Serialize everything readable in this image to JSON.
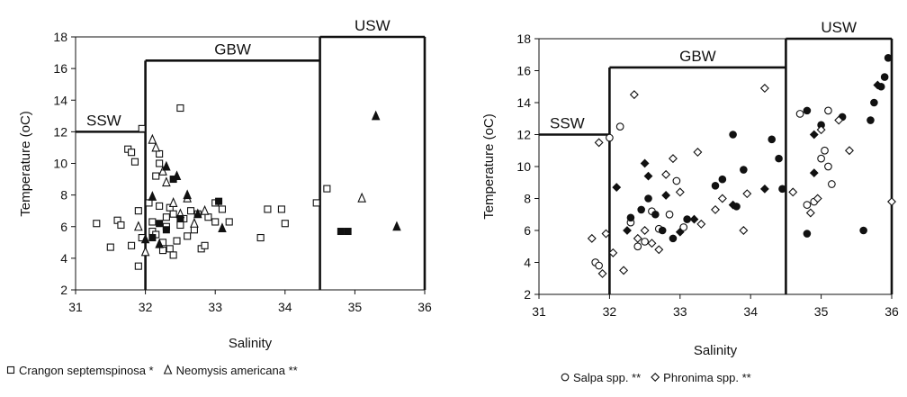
{
  "chart_data": [
    {
      "type": "scatter",
      "title": "",
      "xlabel": "Salinity",
      "ylabel": "Temperature (oC)",
      "xlim": [
        31,
        36
      ],
      "ylim": [
        2,
        18
      ],
      "xticks": [
        "31",
        "32",
        "33",
        "34",
        "35",
        "36"
      ],
      "yticks": [
        "2",
        "4",
        "6",
        "8",
        "10",
        "12",
        "14",
        "16",
        "18"
      ],
      "grid": false,
      "legend_position": "bottom",
      "water_masses": [
        {
          "label": "SSW",
          "salinity_min": 31,
          "salinity_max": 32,
          "temperature_max": 12
        },
        {
          "label": "GBW",
          "salinity_min": 32,
          "salinity_max": 34.5,
          "temperature_max": 16.5
        },
        {
          "label": "USW",
          "salinity_min": 34.5,
          "salinity_max": 36,
          "temperature_max": 18
        }
      ],
      "series": [
        {
          "name": "Crangon septemspinosa *",
          "marker": "open-square",
          "points": [
            [
              31.3,
              6.2
            ],
            [
              31.5,
              4.7
            ],
            [
              31.6,
              6.4
            ],
            [
              31.65,
              6.1
            ],
            [
              31.75,
              10.9
            ],
            [
              31.8,
              10.7
            ],
            [
              31.85,
              10.1
            ],
            [
              31.9,
              3.5
            ],
            [
              31.95,
              5.3
            ],
            [
              31.9,
              7.0
            ],
            [
              31.95,
              12.2
            ],
            [
              31.8,
              4.8
            ],
            [
              32.05,
              7.5
            ],
            [
              32.1,
              6.3
            ],
            [
              32.1,
              5.7
            ],
            [
              32.15,
              5.5
            ],
            [
              32.15,
              9.2
            ],
            [
              32.2,
              10.6
            ],
            [
              32.2,
              10.0
            ],
            [
              32.2,
              7.3
            ],
            [
              32.25,
              5.0
            ],
            [
              32.25,
              4.5
            ],
            [
              32.3,
              6.6
            ],
            [
              32.3,
              6.0
            ],
            [
              32.35,
              4.6
            ],
            [
              32.35,
              7.2
            ],
            [
              32.4,
              6.8
            ],
            [
              32.4,
              4.2
            ],
            [
              32.45,
              5.1
            ],
            [
              32.5,
              6.1
            ],
            [
              32.5,
              13.5
            ],
            [
              32.55,
              6.5
            ],
            [
              32.6,
              5.4
            ],
            [
              32.65,
              7.0
            ],
            [
              32.7,
              5.8
            ],
            [
              32.75,
              6.8
            ],
            [
              32.8,
              4.6
            ],
            [
              32.85,
              4.8
            ],
            [
              32.9,
              6.6
            ],
            [
              33.0,
              7.5
            ],
            [
              33.0,
              6.3
            ],
            [
              33.1,
              7.1
            ],
            [
              33.2,
              6.3
            ],
            [
              33.65,
              5.3
            ],
            [
              33.75,
              7.1
            ],
            [
              33.95,
              7.1
            ],
            [
              34.0,
              6.2
            ],
            [
              34.45,
              7.5
            ],
            [
              34.6,
              8.4
            ]
          ]
        },
        {
          "name": "Neomysis americana **",
          "marker": "open-triangle",
          "points": [
            [
              31.9,
              6.0
            ],
            [
              32.0,
              4.4
            ],
            [
              32.1,
              11.5
            ],
            [
              32.15,
              11.0
            ],
            [
              32.25,
              9.5
            ],
            [
              32.3,
              8.8
            ],
            [
              32.4,
              7.5
            ],
            [
              32.5,
              6.8
            ],
            [
              32.6,
              7.8
            ],
            [
              32.7,
              6.2
            ],
            [
              32.85,
              7.0
            ],
            [
              35.1,
              7.8
            ]
          ]
        },
        {
          "name": "",
          "marker": "filled-square",
          "points": [
            [
              32.1,
              5.3
            ],
            [
              32.2,
              6.2
            ],
            [
              32.3,
              5.8
            ],
            [
              32.4,
              9.0
            ],
            [
              32.5,
              6.5
            ],
            [
              33.05,
              7.6
            ],
            [
              34.8,
              5.7
            ],
            [
              34.9,
              5.7
            ]
          ]
        },
        {
          "name": "",
          "marker": "filled-triangle",
          "points": [
            [
              32.0,
              5.2
            ],
            [
              32.1,
              7.9
            ],
            [
              32.2,
              4.9
            ],
            [
              32.3,
              9.8
            ],
            [
              32.45,
              9.2
            ],
            [
              32.6,
              8.0
            ],
            [
              32.75,
              6.8
            ],
            [
              33.1,
              5.9
            ],
            [
              35.3,
              13.0
            ],
            [
              35.6,
              6.0
            ]
          ]
        }
      ],
      "legend": [
        {
          "marker": "open-square",
          "label": "Crangon septemspinosa *"
        },
        {
          "marker": "open-triangle",
          "label": "Neomysis americana **"
        }
      ]
    },
    {
      "type": "scatter",
      "title": "",
      "xlabel": "Salinity",
      "ylabel": "Temperature (oC)",
      "xlim": [
        31,
        36
      ],
      "ylim": [
        2,
        18
      ],
      "xticks": [
        "31",
        "32",
        "33",
        "34",
        "35",
        "36"
      ],
      "yticks": [
        "2",
        "4",
        "6",
        "8",
        "10",
        "12",
        "14",
        "16",
        "18"
      ],
      "grid": false,
      "legend_position": "bottom",
      "water_masses": [
        {
          "label": "SSW",
          "salinity_min": 31,
          "salinity_max": 32,
          "temperature_max": 12
        },
        {
          "label": "GBW",
          "salinity_min": 32,
          "salinity_max": 34.5,
          "temperature_max": 16.2
        },
        {
          "label": "USW",
          "salinity_min": 34.5,
          "salinity_max": 36,
          "temperature_max": 18
        }
      ],
      "series": [
        {
          "name": "Salpa spp. **",
          "marker": "open-circle",
          "points": [
            [
              31.8,
              4.0
            ],
            [
              31.85,
              3.8
            ],
            [
              32.0,
              11.8
            ],
            [
              32.15,
              12.5
            ],
            [
              32.3,
              6.5
            ],
            [
              32.4,
              5.0
            ],
            [
              32.5,
              5.3
            ],
            [
              32.6,
              7.2
            ],
            [
              32.7,
              6.1
            ],
            [
              32.85,
              7.0
            ],
            [
              32.95,
              9.1
            ],
            [
              33.05,
              6.2
            ],
            [
              34.7,
              13.3
            ],
            [
              34.8,
              7.6
            ],
            [
              34.9,
              7.8
            ],
            [
              35.0,
              10.5
            ],
            [
              35.05,
              11.0
            ],
            [
              35.1,
              13.5
            ],
            [
              35.1,
              10.0
            ],
            [
              35.15,
              8.9
            ]
          ]
        },
        {
          "name": "",
          "marker": "filled-circle",
          "points": [
            [
              32.3,
              6.8
            ],
            [
              32.45,
              7.3
            ],
            [
              32.55,
              8.0
            ],
            [
              32.65,
              7.0
            ],
            [
              32.75,
              6.0
            ],
            [
              32.9,
              5.5
            ],
            [
              33.1,
              6.7
            ],
            [
              33.5,
              8.8
            ],
            [
              33.6,
              9.2
            ],
            [
              33.75,
              12.0
            ],
            [
              33.8,
              7.5
            ],
            [
              33.9,
              9.8
            ],
            [
              34.3,
              11.7
            ],
            [
              34.45,
              8.6
            ],
            [
              34.8,
              13.5
            ],
            [
              34.8,
              5.8
            ],
            [
              35.0,
              12.6
            ],
            [
              35.3,
              13.1
            ],
            [
              35.6,
              6.0
            ],
            [
              35.7,
              12.9
            ],
            [
              35.75,
              14.0
            ],
            [
              35.85,
              15.0
            ],
            [
              35.9,
              15.6
            ],
            [
              35.95,
              16.8
            ],
            [
              34.4,
              10.5
            ]
          ]
        },
        {
          "name": "Phronima spp. **",
          "marker": "open-diamond",
          "points": [
            [
              31.75,
              5.5
            ],
            [
              31.85,
              11.5
            ],
            [
              31.9,
              3.3
            ],
            [
              31.95,
              5.8
            ],
            [
              32.05,
              4.6
            ],
            [
              32.2,
              3.5
            ],
            [
              32.35,
              14.5
            ],
            [
              32.4,
              5.5
            ],
            [
              32.5,
              6.0
            ],
            [
              32.6,
              5.2
            ],
            [
              32.7,
              4.8
            ],
            [
              32.8,
              9.5
            ],
            [
              32.9,
              10.5
            ],
            [
              33.0,
              8.4
            ],
            [
              33.25,
              10.9
            ],
            [
              33.3,
              6.4
            ],
            [
              33.5,
              7.3
            ],
            [
              33.6,
              8.0
            ],
            [
              33.9,
              6.0
            ],
            [
              33.95,
              8.3
            ],
            [
              34.2,
              14.9
            ],
            [
              34.6,
              8.4
            ],
            [
              34.85,
              7.1
            ],
            [
              34.95,
              8.0
            ],
            [
              35.0,
              12.3
            ],
            [
              35.25,
              12.9
            ],
            [
              35.4,
              11.0
            ],
            [
              36.0,
              7.8
            ]
          ]
        },
        {
          "name": "",
          "marker": "filled-diamond",
          "points": [
            [
              32.1,
              8.7
            ],
            [
              32.25,
              6.0
            ],
            [
              32.5,
              10.2
            ],
            [
              32.55,
              9.4
            ],
            [
              32.8,
              8.2
            ],
            [
              33.0,
              5.9
            ],
            [
              33.2,
              6.7
            ],
            [
              33.75,
              7.6
            ],
            [
              34.2,
              8.6
            ],
            [
              34.9,
              9.6
            ],
            [
              35.8,
              15.1
            ],
            [
              34.9,
              12.0
            ]
          ]
        }
      ],
      "legend": [
        {
          "marker": "open-circle",
          "label": "Salpa spp. **"
        },
        {
          "marker": "open-diamond",
          "label": "Phronima spp. **"
        }
      ]
    }
  ]
}
